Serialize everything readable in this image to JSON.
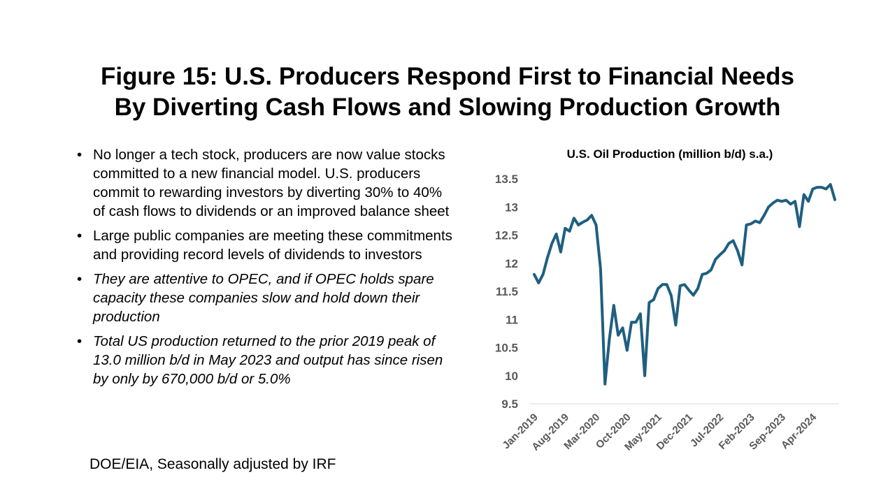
{
  "slide": {
    "title_lines": [
      "Figure 15: U.S. Producers Respond First to Financial Needs",
      "By Diverting Cash Flows and Slowing Production Growth"
    ],
    "bullets": [
      {
        "text": "No longer a tech stock, producers are now value stocks committed to a new financial model. U.S. producers commit to rewarding investors by diverting 30% to 40% of cash flows to dividends or an improved balance sheet",
        "italic": false
      },
      {
        "text": "Large public companies are meeting these commitments and providing record levels of dividends to investors",
        "italic": false
      },
      {
        "text": "They are attentive to OPEC, and if OPEC holds spare capacity these companies slow and hold down their production",
        "italic": true
      },
      {
        "text": "Total US production returned to the prior 2019 peak of 13.0 million b/d in May 2023 and output has since risen by only by 670,000 b/d or 5.0%",
        "italic": true
      }
    ],
    "source": "DOE/EIA, Seasonally adjusted by IRF"
  },
  "chart_data": {
    "type": "line",
    "title": "U.S. Oil Production  (million b/d) s.a.)",
    "xlabel": "",
    "ylabel": "",
    "ylim": [
      9.5,
      13.5
    ],
    "yticks": [
      "9.5",
      "10",
      "10.5",
      "11",
      "11.5",
      "12",
      "12.5",
      "13",
      "13.5"
    ],
    "x_tick_labels": [
      "Jan-2019",
      "Aug-2019",
      "Mar-2020",
      "Oct-2020",
      "May-2021",
      "Dec-2021",
      "Jul-2022",
      "Feb-2023",
      "Sep-2023",
      "Apr-2024"
    ],
    "x_tick_every": 7,
    "grid": false,
    "legend": "none",
    "line_color": "#1f5f7f",
    "x_start": "Jan-2019",
    "frequency": "monthly",
    "values": [
      11.8,
      11.65,
      11.8,
      12.1,
      12.35,
      12.52,
      12.2,
      12.62,
      12.57,
      12.8,
      12.68,
      12.73,
      12.77,
      12.85,
      12.68,
      11.9,
      9.85,
      10.65,
      11.25,
      10.72,
      10.85,
      10.45,
      10.95,
      10.95,
      11.1,
      10.0,
      11.3,
      11.35,
      11.55,
      11.62,
      11.62,
      11.42,
      10.9,
      11.6,
      11.62,
      11.52,
      11.43,
      11.55,
      11.8,
      11.82,
      11.88,
      12.07,
      12.15,
      12.22,
      12.35,
      12.4,
      12.22,
      11.97,
      12.68,
      12.7,
      12.75,
      12.72,
      12.85,
      13.0,
      13.07,
      13.12,
      13.1,
      13.12,
      13.05,
      13.1,
      12.65,
      13.22,
      13.1,
      13.32,
      13.35,
      13.35,
      13.32,
      13.4,
      13.13
    ]
  }
}
